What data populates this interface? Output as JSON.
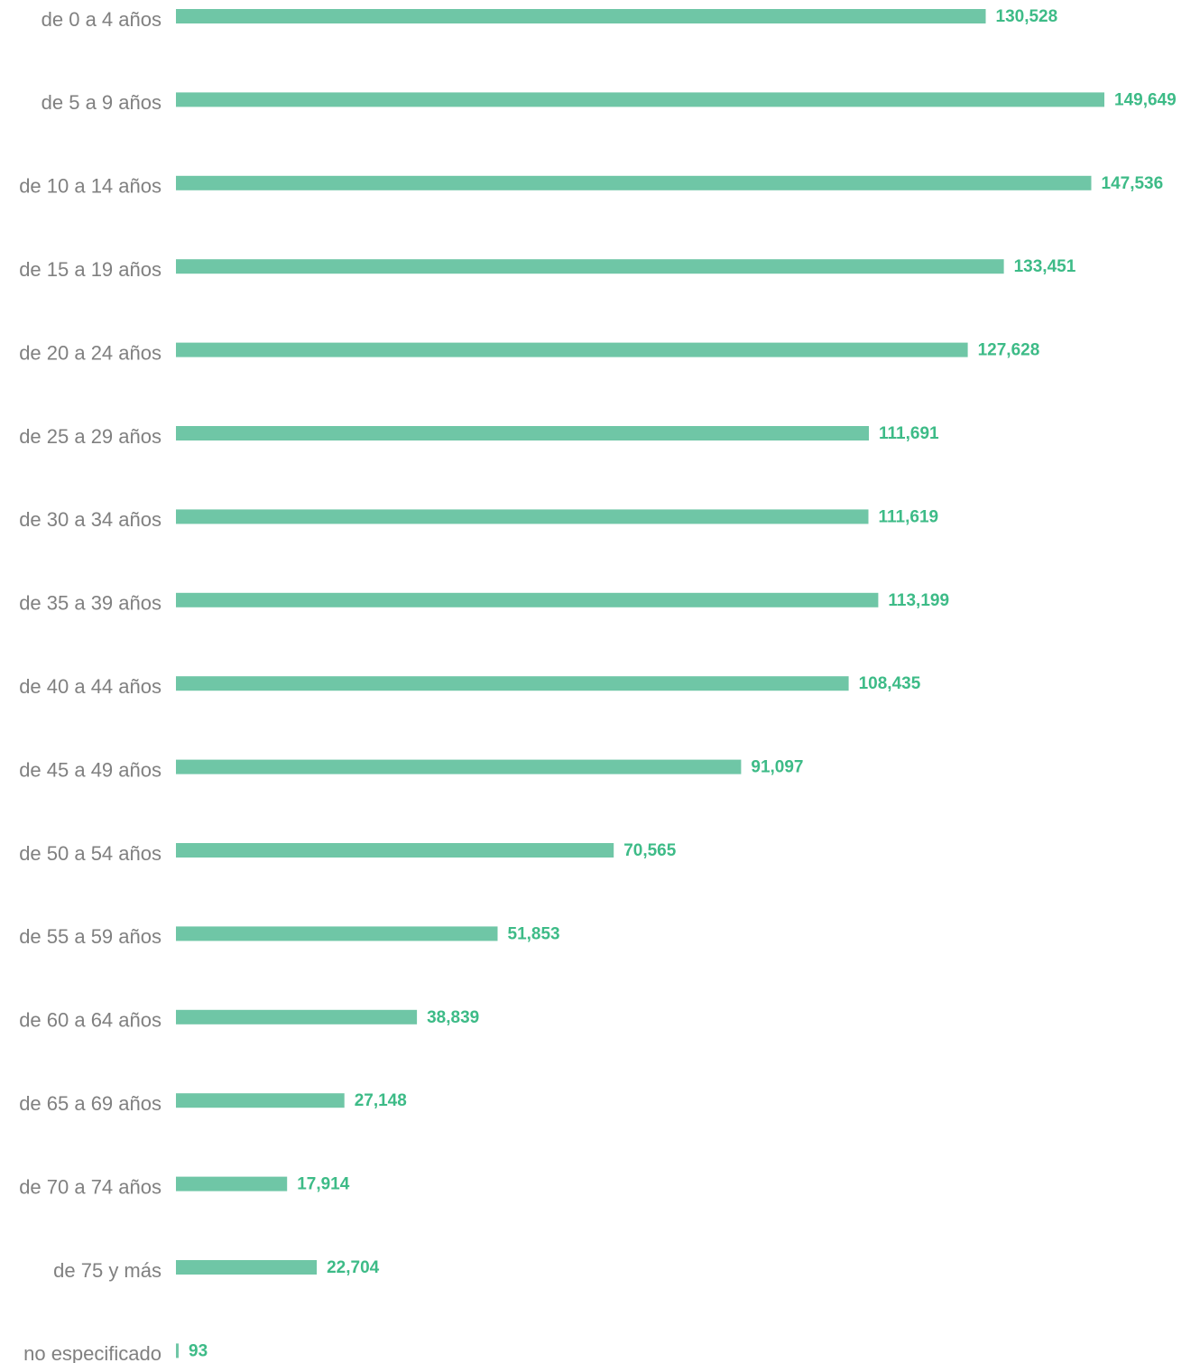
{
  "chart_data": {
    "type": "bar",
    "orientation": "horizontal",
    "categories": [
      "de 0 a 4 años",
      "de 5 a 9 años",
      "de 10 a 14 años",
      "de 15 a 19 años",
      "de 20 a 24 años",
      "de 25 a 29 años",
      "de 30 a 34 años",
      "de 35 a 39 años",
      "de 40 a 44 años",
      "de 45 a 49 años",
      "de 50 a 54 años",
      "de 55 a 59 años",
      "de 60 a 64 años",
      "de 65 a 69 años",
      "de 70 a 74 años",
      "de 75 y más",
      "no especificado"
    ],
    "values": [
      130528,
      149649,
      147536,
      133451,
      127628,
      111691,
      111619,
      113199,
      108435,
      91097,
      70565,
      51853,
      38839,
      27148,
      17914,
      22704,
      93
    ],
    "value_labels": [
      "130,528",
      "149,649",
      "147,536",
      "133,451",
      "127,628",
      "111,691",
      "111,619",
      "113,199",
      "108,435",
      "91,097",
      "70,565",
      "51,853",
      "38,839",
      "27,148",
      "17,914",
      "22,704",
      "93"
    ],
    "xlim": [
      0,
      149649
    ],
    "grid": false,
    "legend": "none",
    "bar_color": "#6fc6a6",
    "value_label_color": "#3dbb87",
    "category_label_color": "#808080"
  }
}
